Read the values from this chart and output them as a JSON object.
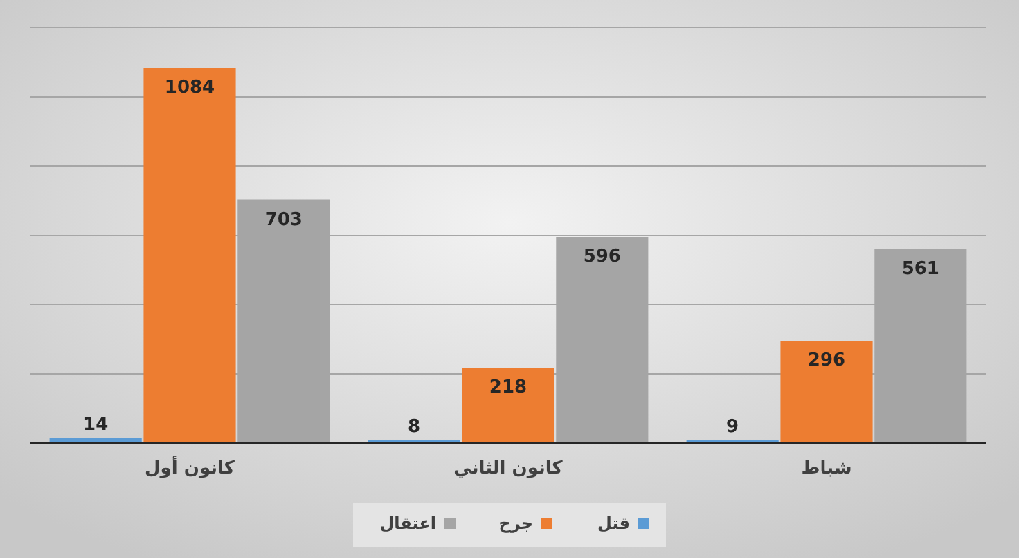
{
  "chart_data": {
    "type": "bar",
    "categories": [
      "كانون أول",
      "كانون الثاني",
      "شباط"
    ],
    "series": [
      {
        "name": "قتل",
        "color": "#5b9bd5",
        "values": [
          14,
          8,
          9
        ]
      },
      {
        "name": "جرح",
        "color": "#ed7d31",
        "values": [
          1084,
          218,
          296
        ]
      },
      {
        "name": "اعتقال",
        "color": "#a5a5a5",
        "values": [
          703,
          596,
          561
        ]
      }
    ],
    "ylim": [
      0,
      1200
    ],
    "yticks": [
      {
        "value": 0,
        "label": null
      },
      {
        "value": 200,
        "label": null
      },
      {
        "value": 400,
        "label": null
      },
      {
        "value": 600,
        "label": null
      },
      {
        "value": 800,
        "label": null
      },
      {
        "value": 1000,
        "label": null
      },
      {
        "value": 1200,
        "label": null
      }
    ],
    "grid": "y",
    "tick_labels": "x",
    "data_labels": true,
    "legend": "bottom"
  }
}
